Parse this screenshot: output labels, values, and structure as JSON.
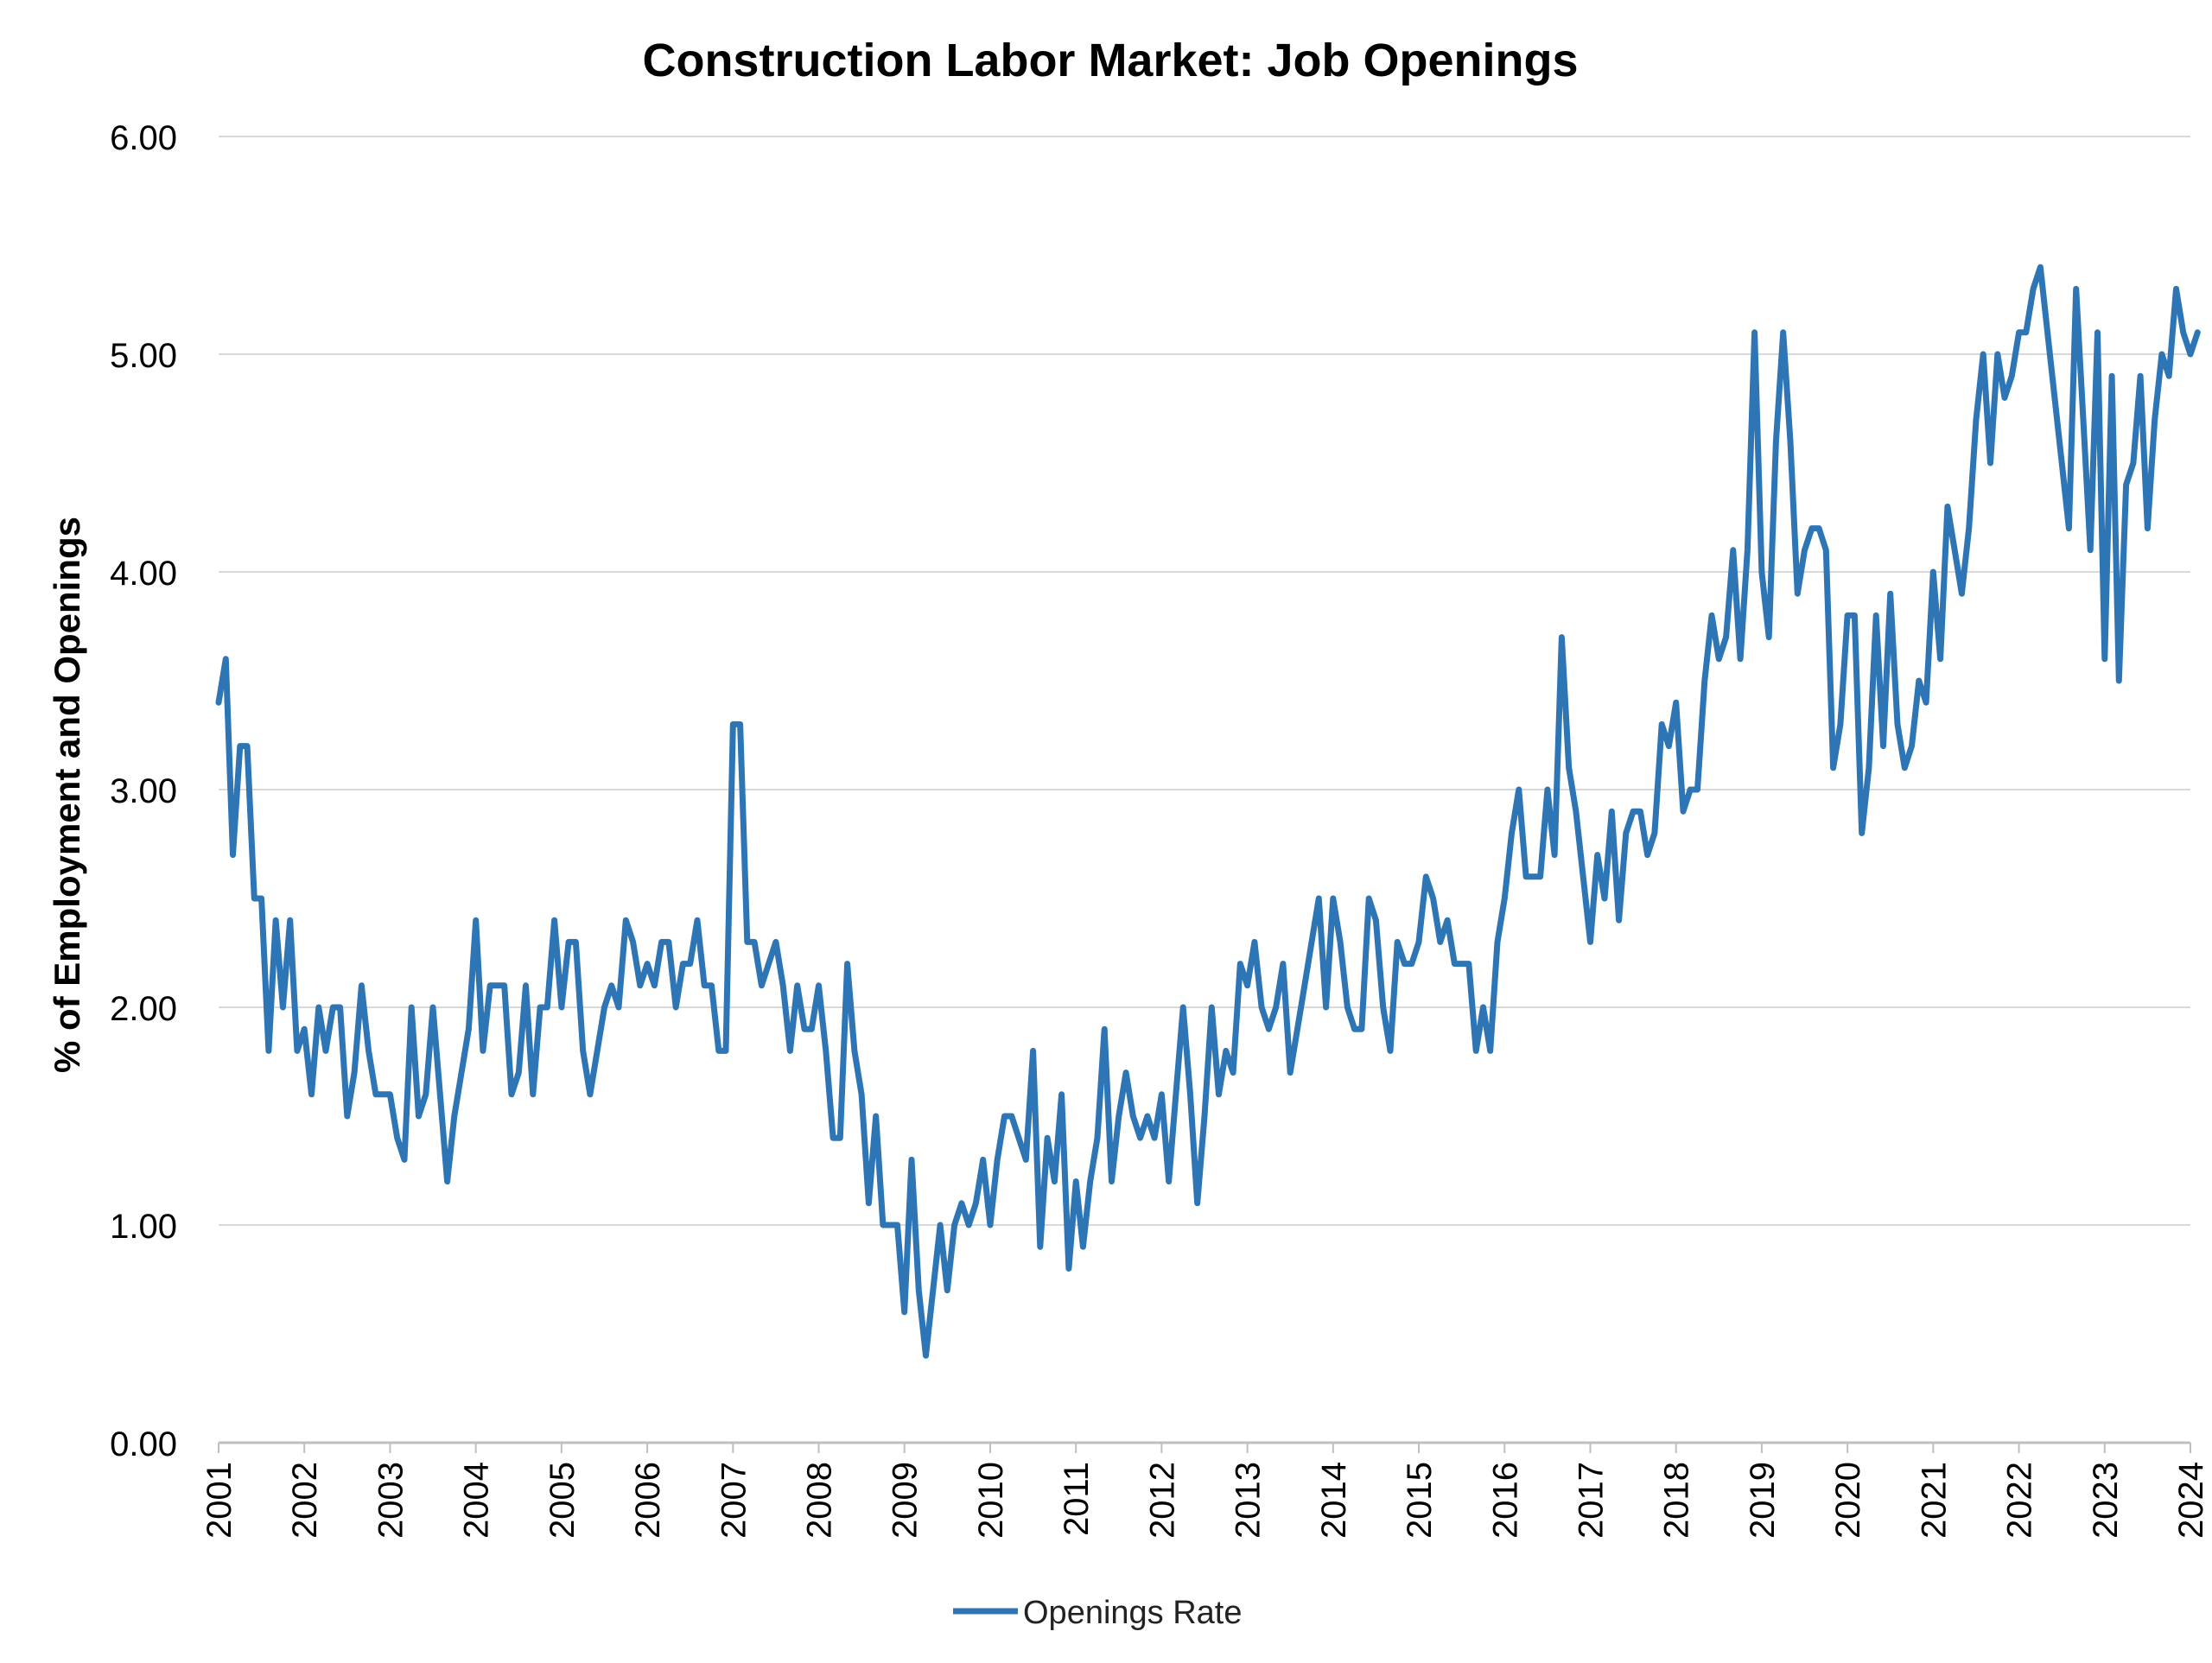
{
  "chart_data": {
    "type": "line",
    "title": "Construction Labor Market: Job Openings",
    "xlabel": "",
    "ylabel": "% of Employment and Openings",
    "ylim": [
      0,
      6
    ],
    "y_ticks": [
      "0.00",
      "1.00",
      "2.00",
      "3.00",
      "4.00",
      "5.00",
      "6.00"
    ],
    "x_ticks": [
      "2001",
      "2002",
      "2003",
      "2004",
      "2005",
      "2006",
      "2007",
      "2008",
      "2009",
      "2010",
      "2011",
      "2012",
      "2013",
      "2014",
      "2015",
      "2016",
      "2017",
      "2018",
      "2019",
      "2020",
      "2021",
      "2022",
      "2023",
      "2024"
    ],
    "x_range": [
      2001,
      2024
    ],
    "grid": "horizontal",
    "legend_position": "bottom",
    "series": [
      {
        "name": "Openings Rate",
        "color": "#2E75B6",
        "start": "2001-01",
        "frequency": "monthly",
        "values": [
          3.4,
          3.6,
          2.7,
          3.2,
          3.2,
          2.5,
          2.5,
          1.8,
          2.4,
          2.0,
          2.4,
          1.8,
          1.9,
          1.6,
          2.0,
          1.8,
          2.0,
          2.0,
          1.5,
          1.7,
          2.1,
          1.8,
          1.6,
          1.6,
          1.6,
          1.4,
          1.3,
          2.0,
          1.5,
          1.6,
          2.0,
          1.6,
          1.2,
          1.5,
          1.7,
          1.9,
          2.4,
          1.8,
          2.1,
          2.1,
          2.1,
          1.6,
          1.7,
          2.1,
          1.6,
          2.0,
          2.0,
          2.4,
          2.0,
          2.3,
          2.3,
          1.8,
          1.6,
          1.8,
          2.0,
          2.1,
          2.0,
          2.4,
          2.3,
          2.1,
          2.2,
          2.1,
          2.3,
          2.3,
          2.0,
          2.2,
          2.2,
          2.4,
          2.1,
          2.1,
          1.8,
          1.8,
          3.3,
          3.3,
          2.3,
          2.3,
          2.1,
          2.2,
          2.3,
          2.1,
          1.8,
          2.1,
          1.9,
          1.9,
          2.1,
          1.8,
          1.4,
          1.4,
          2.2,
          1.8,
          1.6,
          1.1,
          1.5,
          1.0,
          1.0,
          1.0,
          0.6,
          1.3,
          0.7,
          0.4,
          0.7,
          1.0,
          0.7,
          1.0,
          1.1,
          1.0,
          1.1,
          1.3,
          1.0,
          1.3,
          1.5,
          1.5,
          1.4,
          1.3,
          1.8,
          0.9,
          1.4,
          1.2,
          1.6,
          0.8,
          1.2,
          0.9,
          1.2,
          1.4,
          1.9,
          1.2,
          1.5,
          1.7,
          1.5,
          1.4,
          1.5,
          1.4,
          1.6,
          1.2,
          1.6,
          2.0,
          1.6,
          1.1,
          1.5,
          2.0,
          1.6,
          1.8,
          1.7,
          2.2,
          2.1,
          2.3,
          2.0,
          1.9,
          2.0,
          2.2,
          1.7,
          1.9,
          2.1,
          2.3,
          2.5,
          2.0,
          2.5,
          2.3,
          2.0,
          1.9,
          1.9,
          2.5,
          2.4,
          2.0,
          1.8,
          2.3,
          2.2,
          2.2,
          2.3,
          2.6,
          2.5,
          2.3,
          2.4,
          2.2,
          2.2,
          2.2,
          1.8,
          2.0,
          1.8,
          2.3,
          2.5,
          2.8,
          3.0,
          2.6,
          2.6,
          2.6,
          3.0,
          2.7,
          3.7,
          3.1,
          2.9,
          2.6,
          2.3,
          2.7,
          2.5,
          2.9,
          2.4,
          2.8,
          2.9,
          2.9,
          2.7,
          2.8,
          3.3,
          3.2,
          3.4,
          2.9,
          3.0,
          3.0,
          3.5,
          3.8,
          3.6,
          3.7,
          4.1,
          3.6,
          4.1,
          5.1,
          4.0,
          3.7,
          4.6,
          5.1,
          4.6,
          3.9,
          4.1,
          4.2,
          4.2,
          4.1,
          3.1,
          3.3,
          3.8,
          3.8,
          2.8,
          3.1,
          3.8,
          3.2,
          3.9,
          3.3,
          3.1,
          3.2,
          3.5,
          3.4,
          4.0,
          3.6,
          4.3,
          4.1,
          3.9,
          4.2,
          4.7,
          5.0,
          4.5,
          5.0,
          4.8,
          4.9,
          5.1,
          5.1,
          5.3,
          5.4,
          5.1,
          4.8,
          4.5,
          4.2,
          5.3,
          4.7,
          4.1,
          5.1,
          3.6,
          4.9,
          3.5,
          4.4,
          4.5,
          4.9,
          4.2,
          4.7,
          5.0,
          4.9,
          5.3,
          5.1,
          5.0,
          5.1
        ]
      }
    ]
  }
}
